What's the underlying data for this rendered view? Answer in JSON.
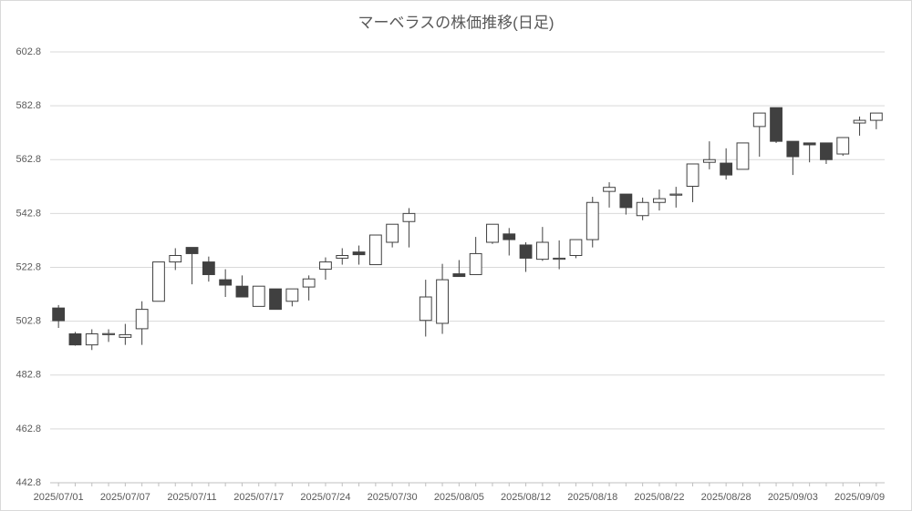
{
  "chart_data": {
    "type": "candlestick",
    "title": "マーベラスの株価推移(日足)",
    "categories": [
      "2025/07/01",
      null,
      null,
      null,
      "2025/07/07",
      null,
      null,
      null,
      "2025/07/11",
      null,
      null,
      null,
      "2025/07/17",
      null,
      null,
      null,
      "2025/07/24",
      null,
      null,
      null,
      "2025/07/30",
      null,
      null,
      null,
      "2025/08/05",
      null,
      null,
      null,
      "2025/08/12",
      null,
      null,
      null,
      "2025/08/18",
      null,
      null,
      null,
      "2025/08/22",
      null,
      null,
      null,
      "2025/08/28",
      null,
      null,
      null,
      "2025/09/03",
      null,
      null,
      null,
      "2025/09/09",
      null
    ],
    "open": [
      507.7,
      498.1,
      494.0,
      497.8,
      496.8,
      500.0,
      510.2,
      524.8,
      530.2,
      524.8,
      518.2,
      515.8,
      508.3,
      514.8,
      510.2,
      515.5,
      522.1,
      526.2,
      528.5,
      523.8,
      532.1,
      539.8,
      503.1,
      502.0,
      520.4,
      520.1,
      532.1,
      535.2,
      531.1,
      525.8,
      525.8,
      527.2,
      533.1,
      551.0,
      550.0,
      542.0,
      546.9,
      549.6,
      552.9,
      561.8,
      561.5,
      559.2,
      575.1,
      582.1,
      569.6,
      569.0,
      569.0,
      564.9,
      576.4,
      577.4
    ],
    "high": [
      508.8,
      498.8,
      499.8,
      499.8,
      501.8,
      510.2,
      524.8,
      529.9,
      530.2,
      526.8,
      522.1,
      519.8,
      515.8,
      514.8,
      514.8,
      519.8,
      526.5,
      529.9,
      530.9,
      534.8,
      538.8,
      544.8,
      518.2,
      524.1,
      525.5,
      534.1,
      538.8,
      537.4,
      532.1,
      537.8,
      532.8,
      533.1,
      549.0,
      554.4,
      550.0,
      548.7,
      551.7,
      552.7,
      561.2,
      569.6,
      567.0,
      569.0,
      580.1,
      582.1,
      569.6,
      569.0,
      569.0,
      571.0,
      578.8,
      580.1
    ],
    "low": [
      500.3,
      493.7,
      492.1,
      495.1,
      494.0,
      494.0,
      510.2,
      521.8,
      516.5,
      517.5,
      511.8,
      511.8,
      508.3,
      507.2,
      508.3,
      510.5,
      518.2,
      523.8,
      523.8,
      523.8,
      530.2,
      530.2,
      497.1,
      498.1,
      519.4,
      520.1,
      531.5,
      527.2,
      521.1,
      525.2,
      522.1,
      526.2,
      530.2,
      545.0,
      542.4,
      540.3,
      543.9,
      545.0,
      547.0,
      559.2,
      555.4,
      559.2,
      563.9,
      569.0,
      557.1,
      561.8,
      561.2,
      564.2,
      571.7,
      574.1
    ],
    "close": [
      503.0,
      494.0,
      498.1,
      498.2,
      497.8,
      507.2,
      524.8,
      527.2,
      527.9,
      520.1,
      516.2,
      511.8,
      515.8,
      507.2,
      514.8,
      518.5,
      524.8,
      527.2,
      527.5,
      534.8,
      538.8,
      542.8,
      511.8,
      518.2,
      519.4,
      527.9,
      538.8,
      533.1,
      526.2,
      532.1,
      526.2,
      533.1,
      546.9,
      552.5,
      545.0,
      546.9,
      548.3,
      550.0,
      561.2,
      562.8,
      557.1,
      569.0,
      580.1,
      569.6,
      563.9,
      568.3,
      562.8,
      571.0,
      577.4,
      580.1
    ],
    "up_color": "#ffffff",
    "down_color": "#404040",
    "edge_color": "#404040",
    "ylim": [
      442.8,
      602.8
    ],
    "yticks": [
      442.8,
      462.8,
      482.8,
      502.8,
      522.8,
      542.8,
      562.8,
      582.8,
      602.8
    ],
    "grid": true
  }
}
